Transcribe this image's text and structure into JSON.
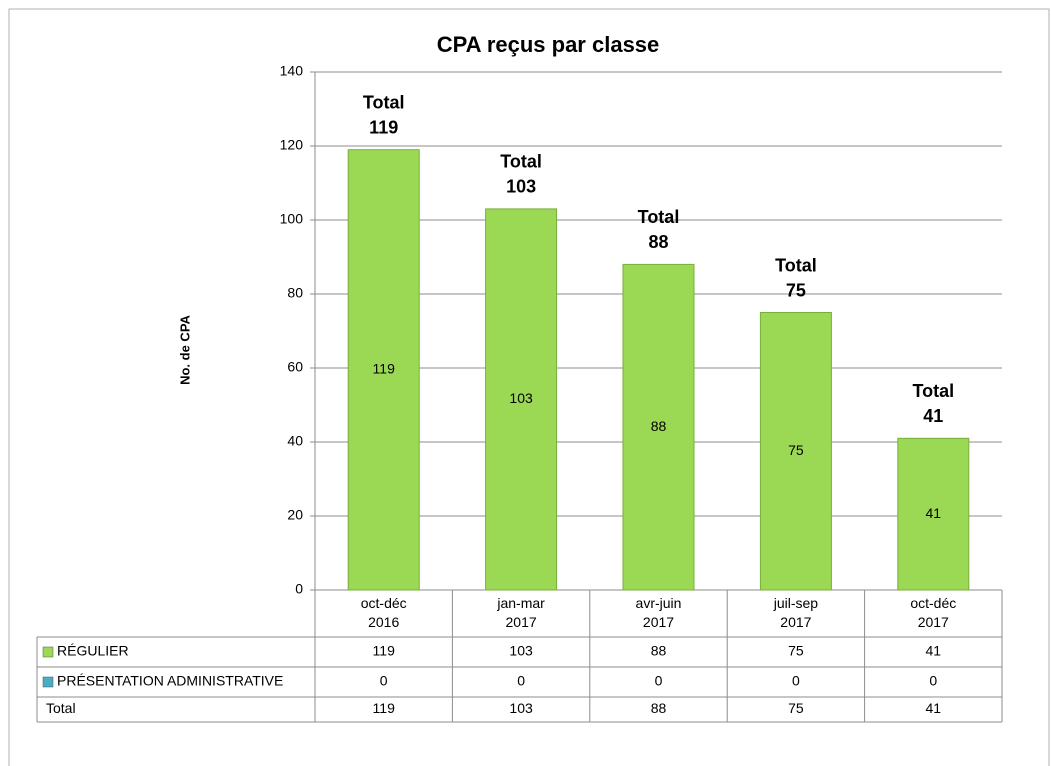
{
  "chart_data": {
    "type": "bar",
    "stacked": true,
    "title": "CPA reçus par classe",
    "y_label": "No. de CPA",
    "categories": [
      "oct-déc\n2016",
      "jan-mar\n2017",
      "avr-juin\n2017",
      "juil-sep\n2017",
      "oct-déc\n2017"
    ],
    "series": [
      {
        "name": "RÉGULIER",
        "color": "#9bd854",
        "values": [
          119,
          103,
          88,
          75,
          41
        ]
      },
      {
        "name": "PRÉSENTATION ADMINISTRATIVE",
        "color": "#4bacc6",
        "values": [
          0,
          0,
          0,
          0,
          0
        ]
      }
    ],
    "totals": {
      "name": "Total",
      "values": [
        119,
        103,
        88,
        75,
        41
      ]
    },
    "ylim": [
      0,
      140
    ],
    "yticks": [
      0,
      20,
      40,
      60,
      80,
      100,
      120,
      140
    ],
    "grid": true,
    "data_table": true
  }
}
